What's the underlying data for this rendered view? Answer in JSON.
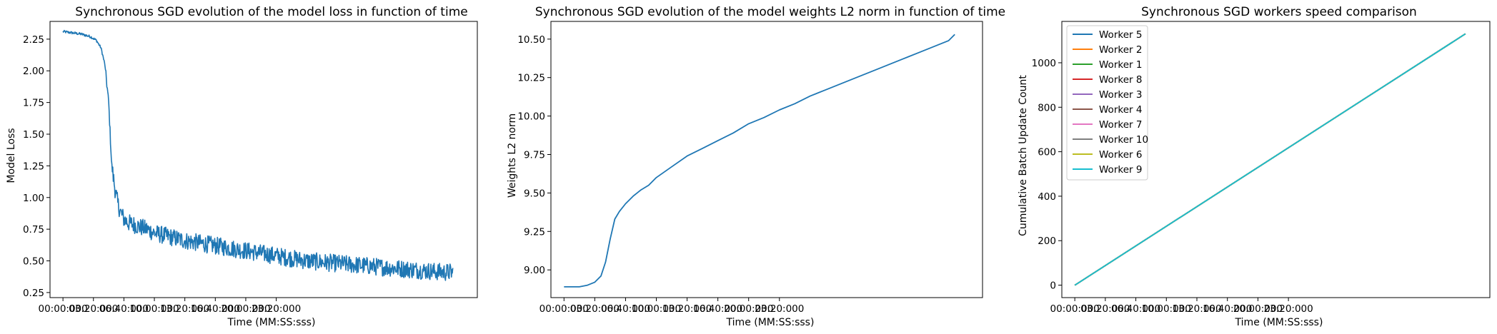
{
  "chart_data": [
    {
      "type": "line",
      "title": "Synchronous SGD evolution of the model loss in function of time",
      "xlabel": "Time (MM:SS:sss)",
      "ylabel": "Model Loss",
      "xlim": [
        -85,
        2720
      ],
      "ylim": [
        0.21,
        2.39
      ],
      "x_ticks": [
        0,
        200,
        400,
        600,
        800,
        1000,
        1200,
        1400
      ],
      "x_tick_labels": [
        "00:00:000",
        "03:20:000",
        "06:40:000",
        "10:00:000",
        "13:20:000",
        "16:40:000",
        "20:00:000",
        "23:20:000"
      ],
      "y_ticks": [
        0.25,
        0.5,
        0.75,
        1.0,
        1.25,
        1.5,
        1.75,
        2.0,
        2.25
      ],
      "y_tick_labels": [
        "0.25",
        "0.50",
        "0.75",
        "1.00",
        "1.25",
        "1.50",
        "1.75",
        "2.00",
        "2.25"
      ],
      "grid": false,
      "color": "#1f77b4",
      "series": [
        {
          "x": [
            0,
            60,
            120,
            180,
            220,
            250,
            275,
            300,
            320,
            340,
            360,
            380,
            400,
            430,
            460,
            500,
            550,
            600,
            700,
            800,
            900,
            1000,
            1100,
            1200,
            1300,
            1400,
            1500,
            1600,
            1700,
            1800,
            1900,
            2000,
            2100,
            2200,
            2300,
            2400,
            2500,
            2560
          ],
          "values": [
            2.31,
            2.3,
            2.29,
            2.27,
            2.24,
            2.18,
            2.05,
            1.75,
            1.25,
            1.08,
            0.95,
            0.88,
            0.83,
            0.8,
            0.79,
            0.77,
            0.75,
            0.72,
            0.69,
            0.66,
            0.64,
            0.62,
            0.6,
            0.58,
            0.56,
            0.54,
            0.52,
            0.5,
            0.49,
            0.48,
            0.47,
            0.46,
            0.45,
            0.44,
            0.43,
            0.42,
            0.41,
            0.41
          ],
          "noise": 0.05
        }
      ]
    },
    {
      "type": "line",
      "title": "Synchronous SGD evolution of the model weights L2 norm in function of time",
      "xlabel": "Time (MM:SS:sss)",
      "ylabel": "Weights L2 norm",
      "xlim": [
        -85,
        2720
      ],
      "ylim": [
        8.82,
        10.615
      ],
      "x_ticks": [
        0,
        200,
        400,
        600,
        800,
        1000,
        1200,
        1400
      ],
      "x_tick_labels": [
        "00:00:000",
        "03:20:000",
        "06:40:000",
        "10:00:000",
        "13:20:000",
        "16:40:000",
        "20:00:000",
        "23:20:000"
      ],
      "y_ticks": [
        9.0,
        9.25,
        9.5,
        9.75,
        10.0,
        10.25,
        10.5
      ],
      "y_tick_labels": [
        "9.00",
        "9.25",
        "9.50",
        "9.75",
        "10.00",
        "10.25",
        "10.50"
      ],
      "grid": false,
      "color": "#1f77b4",
      "series": [
        {
          "x": [
            0,
            100,
            150,
            200,
            240,
            270,
            300,
            330,
            360,
            400,
            450,
            500,
            550,
            600,
            700,
            800,
            900,
            1000,
            1100,
            1200,
            1300,
            1400,
            1500,
            1600,
            1700,
            1800,
            1900,
            2000,
            2100,
            2200,
            2300,
            2400,
            2500,
            2540
          ],
          "values": [
            8.89,
            8.89,
            8.9,
            8.92,
            8.96,
            9.05,
            9.2,
            9.33,
            9.38,
            9.43,
            9.48,
            9.52,
            9.55,
            9.6,
            9.67,
            9.74,
            9.79,
            9.84,
            9.89,
            9.95,
            9.99,
            10.04,
            10.08,
            10.13,
            10.17,
            10.21,
            10.25,
            10.29,
            10.33,
            10.37,
            10.41,
            10.45,
            10.49,
            10.53
          ]
        }
      ]
    },
    {
      "type": "line",
      "title": "Synchronous SGD workers speed comparison",
      "xlabel": "Time (MM:SS:sss)",
      "ylabel": "Cumulative Batch Update Count",
      "xlim": [
        -85,
        2720
      ],
      "ylim": [
        -56,
        1186
      ],
      "x_ticks": [
        0,
        200,
        400,
        600,
        800,
        1000,
        1200,
        1400
      ],
      "x_tick_labels": [
        "00:00:000",
        "03:20:000",
        "06:40:000",
        "10:00:000",
        "13:20:000",
        "16:40:000",
        "20:00:000",
        "23:20:000"
      ],
      "y_ticks": [
        0,
        200,
        400,
        600,
        800,
        1000
      ],
      "y_tick_labels": [
        "0",
        "200",
        "400",
        "600",
        "800",
        "1000"
      ],
      "grid": false,
      "legend": "top-left",
      "series": [
        {
          "name": "Worker 5",
          "color": "#1f77b4",
          "x": [
            0,
            2560
          ],
          "values": [
            0,
            1130
          ]
        },
        {
          "name": "Worker 2",
          "color": "#ff7f0e",
          "x": [
            0,
            2560
          ],
          "values": [
            0,
            1130
          ]
        },
        {
          "name": "Worker 1",
          "color": "#2ca02c",
          "x": [
            0,
            2560
          ],
          "values": [
            0,
            1130
          ]
        },
        {
          "name": "Worker 8",
          "color": "#d62728",
          "x": [
            0,
            2560
          ],
          "values": [
            0,
            1130
          ]
        },
        {
          "name": "Worker 3",
          "color": "#9467bd",
          "x": [
            0,
            2560
          ],
          "values": [
            0,
            1130
          ]
        },
        {
          "name": "Worker 4",
          "color": "#8c564b",
          "x": [
            0,
            2560
          ],
          "values": [
            0,
            1130
          ]
        },
        {
          "name": "Worker 7",
          "color": "#e377c2",
          "x": [
            0,
            2560
          ],
          "values": [
            0,
            1130
          ]
        },
        {
          "name": "Worker 10",
          "color": "#7f7f7f",
          "x": [
            0,
            2560
          ],
          "values": [
            0,
            1130
          ]
        },
        {
          "name": "Worker 6",
          "color": "#bcbd22",
          "x": [
            0,
            2560
          ],
          "values": [
            0,
            1130
          ]
        },
        {
          "name": "Worker 9",
          "color": "#17becf",
          "x": [
            0,
            2560
          ],
          "values": [
            0,
            1130
          ]
        }
      ]
    }
  ]
}
